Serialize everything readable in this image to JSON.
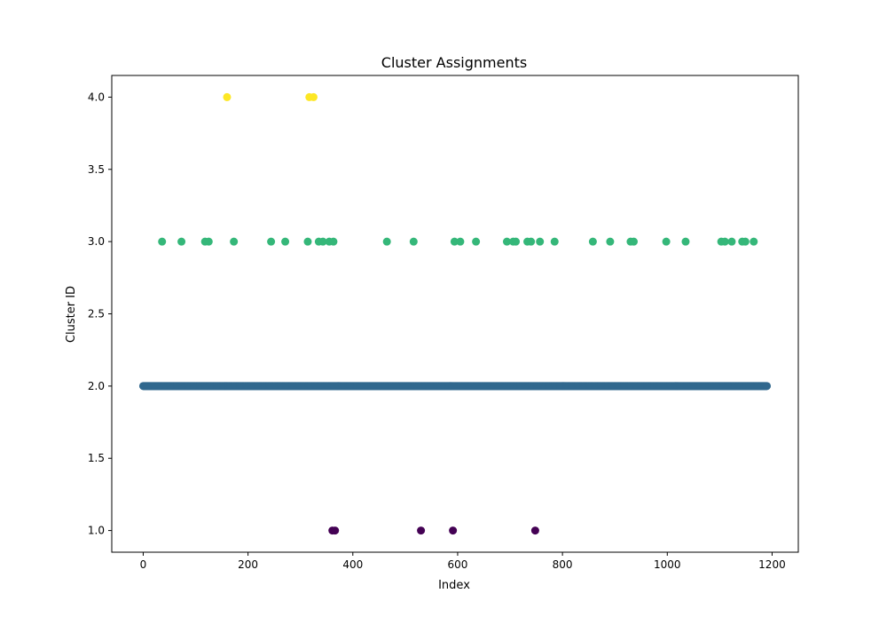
{
  "chart_data": {
    "type": "scatter",
    "title": "Cluster Assignments",
    "xlabel": "Index",
    "ylabel": "Cluster ID",
    "xlim": [
      -60,
      1250
    ],
    "ylim": [
      0.85,
      4.15
    ],
    "xticks": [
      0,
      200,
      400,
      600,
      800,
      1000,
      1200
    ],
    "yticks": [
      1.0,
      1.5,
      2.0,
      2.5,
      3.0,
      3.5,
      4.0
    ],
    "x_tick_labels": [
      "0",
      "200",
      "400",
      "600",
      "800",
      "1000",
      "1200"
    ],
    "y_tick_labels": [
      "1.0",
      "1.5",
      "2.0",
      "2.5",
      "3.0",
      "3.5",
      "4.0"
    ],
    "grid": false,
    "legend": "none",
    "cluster_colors": {
      "1": "#440154",
      "2": "#31688e",
      "3": "#35b779",
      "4": "#fde725"
    },
    "points": [
      {
        "cluster": 1,
        "x": [
          361,
          366,
          530,
          591,
          748
        ]
      },
      {
        "cluster": 2,
        "x_range": [
          0,
          1190
        ],
        "note_points_fill": "continuous"
      },
      {
        "cluster": 3,
        "x": [
          36,
          73,
          118,
          125,
          173,
          244,
          271,
          314,
          335,
          343,
          355,
          363,
          465,
          516,
          594,
          605,
          635,
          694,
          706,
          711,
          733,
          740,
          757,
          785,
          858,
          891,
          930,
          936,
          998,
          1035,
          1103,
          1110,
          1123,
          1143,
          1149,
          1165
        ]
      },
      {
        "cluster": 4,
        "x": [
          160,
          317,
          325
        ]
      }
    ]
  }
}
